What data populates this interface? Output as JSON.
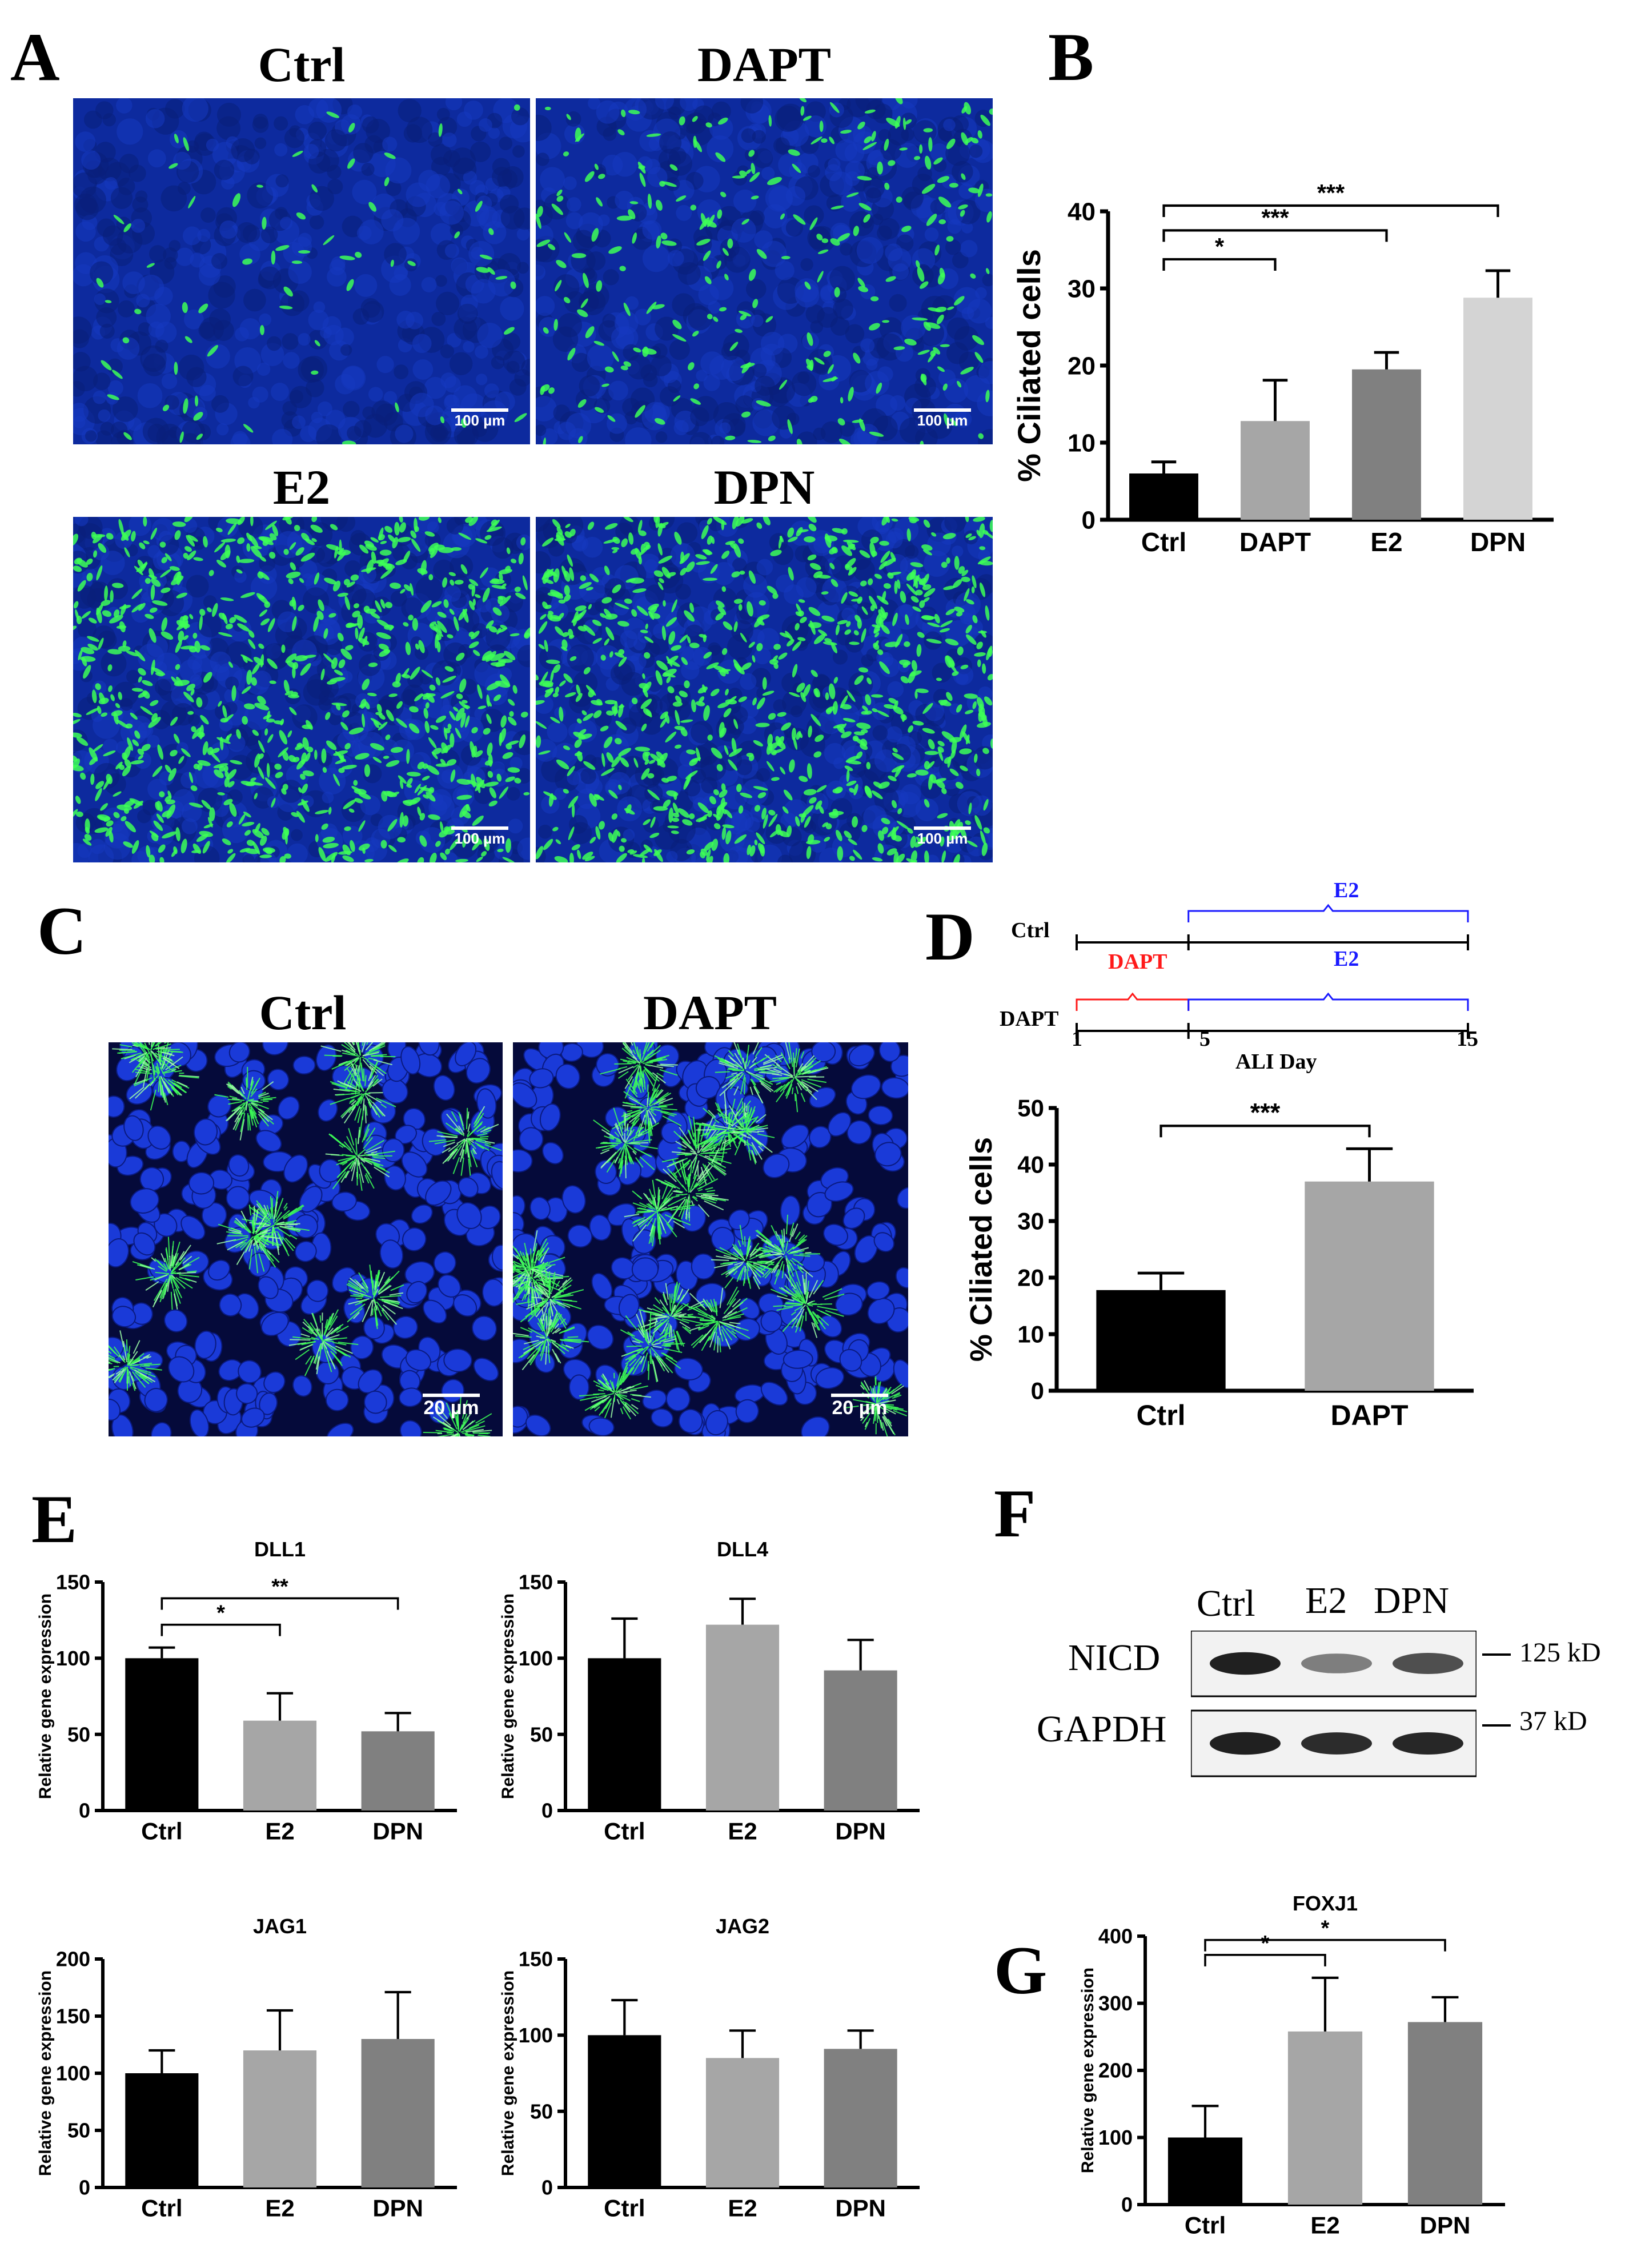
{
  "panels": {
    "A": {
      "letter": "A",
      "images": [
        {
          "title": "Ctrl",
          "scale": "100 µm",
          "density": 0.08
        },
        {
          "title": "DAPT",
          "scale": "100 µm",
          "density": 0.3
        },
        {
          "title": "E2",
          "scale": "100 µm",
          "density": 0.95
        },
        {
          "title": "DPN",
          "scale": "100 µm",
          "density": 0.95
        }
      ]
    },
    "B": {
      "letter": "B"
    },
    "C": {
      "letter": "C",
      "images": [
        {
          "title": "Ctrl",
          "scale": "20 µm"
        },
        {
          "title": "DAPT",
          "scale": "20 µm"
        }
      ]
    },
    "D": {
      "letter": "D",
      "timeline": {
        "rows": [
          {
            "label": "Ctrl",
            "segments": [
              {
                "text": "E2",
                "from": 5,
                "to": 15,
                "color": "#1a1aff"
              }
            ]
          },
          {
            "label": "DAPT",
            "segments": [
              {
                "text": "DAPT",
                "from": 1,
                "to": 5,
                "color": "#ff1a1a"
              },
              {
                "text": "E2",
                "from": 5,
                "to": 15,
                "color": "#1a1aff"
              }
            ]
          }
        ],
        "ticks": [
          "1",
          "5",
          "15"
        ],
        "xlabel": "ALI Day"
      }
    },
    "E": {
      "letter": "E"
    },
    "F": {
      "letter": "F",
      "lanes": [
        "Ctrl",
        "E2",
        "DPN"
      ],
      "rows": [
        {
          "label": "NICD",
          "size": "125 kD",
          "intensity": [
            0.95,
            0.55,
            0.75
          ]
        },
        {
          "label": "GAPDH",
          "size": "37 kD",
          "intensity": [
            0.95,
            0.9,
            0.92
          ]
        }
      ]
    },
    "G": {
      "letter": "G"
    }
  },
  "chart_data": [
    {
      "id": "B",
      "type": "bar",
      "title": "",
      "ylabel": "% Ciliated cells",
      "xlabel": "",
      "categories": [
        "Ctrl",
        "DAPT",
        "E2",
        "DPN"
      ],
      "values": [
        6,
        12.8,
        19.5,
        28.8
      ],
      "errors": [
        1.5,
        5.3,
        2.2,
        3.5
      ],
      "ylim": [
        0,
        40
      ],
      "yticks": [
        0,
        10,
        20,
        30,
        40
      ],
      "colors": [
        "#000000",
        "#a6a6a6",
        "#808080",
        "#d4d4d4"
      ],
      "significance": [
        {
          "from": 0,
          "to": 1,
          "label": "*"
        },
        {
          "from": 0,
          "to": 2,
          "label": "***"
        },
        {
          "from": 0,
          "to": 3,
          "label": "***"
        }
      ]
    },
    {
      "id": "D",
      "type": "bar",
      "title": "",
      "ylabel": "% Ciliated cells",
      "xlabel": "",
      "categories": [
        "Ctrl",
        "DAPT"
      ],
      "values": [
        17.8,
        37
      ],
      "errors": [
        3,
        5.8
      ],
      "ylim": [
        0,
        50
      ],
      "yticks": [
        0,
        10,
        20,
        30,
        40,
        50
      ],
      "colors": [
        "#000000",
        "#a6a6a6"
      ],
      "significance": [
        {
          "from": 0,
          "to": 1,
          "label": "***"
        }
      ]
    },
    {
      "id": "E-DLL1",
      "type": "bar",
      "title": "DLL1",
      "ylabel": "Relative gene expression",
      "xlabel": "",
      "categories": [
        "Ctrl",
        "E2",
        "DPN"
      ],
      "values": [
        100,
        59,
        52
      ],
      "errors": [
        7,
        18,
        12
      ],
      "ylim": [
        0,
        150
      ],
      "yticks": [
        0,
        50,
        100,
        150
      ],
      "colors": [
        "#000000",
        "#a6a6a6",
        "#808080"
      ],
      "significance": [
        {
          "from": 0,
          "to": 1,
          "label": "*"
        },
        {
          "from": 0,
          "to": 2,
          "label": "**"
        }
      ]
    },
    {
      "id": "E-DLL4",
      "type": "bar",
      "title": "DLL4",
      "ylabel": "Relative gene expression",
      "xlabel": "",
      "categories": [
        "Ctrl",
        "E2",
        "DPN"
      ],
      "values": [
        100,
        122,
        92
      ],
      "errors": [
        26,
        17,
        20
      ],
      "ylim": [
        0,
        150
      ],
      "yticks": [
        0,
        50,
        100,
        150
      ],
      "colors": [
        "#000000",
        "#a6a6a6",
        "#808080"
      ],
      "significance": []
    },
    {
      "id": "E-JAG1",
      "type": "bar",
      "title": "JAG1",
      "ylabel": "Relative gene expression",
      "xlabel": "",
      "categories": [
        "Ctrl",
        "E2",
        "DPN"
      ],
      "values": [
        100,
        120,
        130
      ],
      "errors": [
        20,
        35,
        41
      ],
      "ylim": [
        0,
        200
      ],
      "yticks": [
        0,
        50,
        100,
        150,
        200
      ],
      "colors": [
        "#000000",
        "#a6a6a6",
        "#808080"
      ],
      "significance": []
    },
    {
      "id": "E-JAG2",
      "type": "bar",
      "title": "JAG2",
      "ylabel": "Relative gene expression",
      "xlabel": "",
      "categories": [
        "Ctrl",
        "E2",
        "DPN"
      ],
      "values": [
        100,
        85,
        91
      ],
      "errors": [
        23,
        18,
        12
      ],
      "ylim": [
        0,
        150
      ],
      "yticks": [
        0,
        50,
        100,
        150
      ],
      "colors": [
        "#000000",
        "#a6a6a6",
        "#808080"
      ],
      "significance": []
    },
    {
      "id": "G-FOXJ1",
      "type": "bar",
      "title": "FOXJ1",
      "ylabel": "Relative gene expression",
      "xlabel": "",
      "categories": [
        "Ctrl",
        "E2",
        "DPN"
      ],
      "values": [
        100,
        258,
        272
      ],
      "errors": [
        47,
        80,
        37
      ],
      "ylim": [
        0,
        400
      ],
      "yticks": [
        0,
        100,
        200,
        300,
        400
      ],
      "colors": [
        "#000000",
        "#a6a6a6",
        "#808080"
      ],
      "significance": [
        {
          "from": 0,
          "to": 1,
          "label": "*"
        },
        {
          "from": 0,
          "to": 2,
          "label": "*"
        }
      ]
    }
  ]
}
